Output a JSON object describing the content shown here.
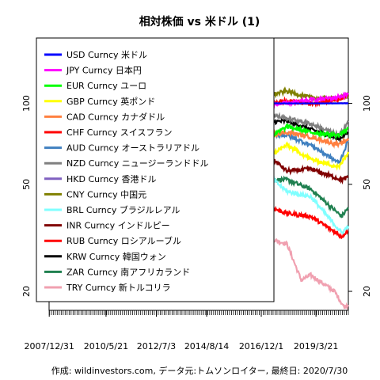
{
  "chart_data": {
    "type": "line",
    "title": "相対株価 vs 米ドル (1)",
    "footer": "作成: wildinvestors.com, データ元:トムソンロイター, 最終日: 2020/7/30",
    "x_tick_labels": [
      "2007/12/31",
      "2010/5/21",
      "2012/7/3",
      "2014/8/14",
      "2016/12/1",
      "2019/3/21"
    ],
    "y_tick_labels": [
      "20",
      "50",
      "100"
    ],
    "y_ticks": [
      20,
      50,
      100
    ],
    "log_scale_y": true,
    "ylim": [
      17,
      175
    ],
    "x_range": [
      2007.99,
      2020.58
    ],
    "x_tick_years": [
      2007.997,
      2010.386,
      2012.503,
      2014.619,
      2016.917,
      2019.219
    ],
    "grid": false,
    "legend_position": "top-left",
    "series": [
      {
        "name": "USD Curncy 米ドル",
        "color": "#0000ff",
        "points": [
          [
            2008,
            100
          ],
          [
            2020.58,
            100
          ]
        ]
      },
      {
        "name": "JPY Curncy 日本円",
        "color": "#ff00ff",
        "points": [
          [
            2008,
            100
          ],
          [
            2008.7,
            112
          ],
          [
            2009.2,
            135
          ],
          [
            2010,
            125
          ],
          [
            2010.8,
            140
          ],
          [
            2011.7,
            145
          ],
          [
            2012.5,
            142
          ],
          [
            2013.3,
            112
          ],
          [
            2014,
            105
          ],
          [
            2015,
            93
          ],
          [
            2016,
            102
          ],
          [
            2016.5,
            112
          ],
          [
            2017,
            98
          ],
          [
            2018,
            100
          ],
          [
            2019,
            103
          ],
          [
            2020,
            105
          ],
          [
            2020.58,
            108
          ]
        ]
      },
      {
        "name": "EUR Curncy ユーロ",
        "color": "#00ff00",
        "points": [
          [
            2008,
            100
          ],
          [
            2008.5,
            108
          ],
          [
            2009,
            90
          ],
          [
            2009.9,
            102
          ],
          [
            2010.5,
            83
          ],
          [
            2011.3,
            98
          ],
          [
            2012.5,
            85
          ],
          [
            2013.5,
            92
          ],
          [
            2014.3,
            95
          ],
          [
            2015,
            75
          ],
          [
            2016,
            76
          ],
          [
            2017,
            72
          ],
          [
            2018,
            82
          ],
          [
            2019,
            78
          ],
          [
            2020.2,
            76
          ],
          [
            2020.58,
            81
          ]
        ]
      },
      {
        "name": "GBP Curncy 英ポンド",
        "color": "#ffff00",
        "points": [
          [
            2008,
            100
          ],
          [
            2008.5,
            98
          ],
          [
            2009,
            72
          ],
          [
            2009.5,
            80
          ],
          [
            2010.5,
            75
          ],
          [
            2011.5,
            80
          ],
          [
            2012.5,
            78
          ],
          [
            2013.5,
            79
          ],
          [
            2014.5,
            85
          ],
          [
            2015.5,
            77
          ],
          [
            2016.5,
            65
          ],
          [
            2017,
            62
          ],
          [
            2018,
            70
          ],
          [
            2019,
            62
          ],
          [
            2020.2,
            58
          ],
          [
            2020.58,
            66
          ]
        ]
      },
      {
        "name": "CAD Curncy カナダドル",
        "color": "#ff8040",
        "points": [
          [
            2008,
            100
          ],
          [
            2008.5,
            98
          ],
          [
            2009,
            80
          ],
          [
            2010,
            97
          ],
          [
            2011.3,
            103
          ],
          [
            2012.5,
            99
          ],
          [
            2013.5,
            95
          ],
          [
            2014.5,
            91
          ],
          [
            2015.5,
            78
          ],
          [
            2016,
            72
          ],
          [
            2017,
            76
          ],
          [
            2018,
            78
          ],
          [
            2019,
            75
          ],
          [
            2020.2,
            70
          ],
          [
            2020.58,
            74
          ]
        ]
      },
      {
        "name": "CHF Curncy スイスフラン",
        "color": "#ff0000",
        "points": [
          [
            2008,
            100
          ],
          [
            2008.5,
            105
          ],
          [
            2009,
            95
          ],
          [
            2010,
            97
          ],
          [
            2011.6,
            130
          ],
          [
            2012.5,
            110
          ],
          [
            2013.5,
            112
          ],
          [
            2014.5,
            113
          ],
          [
            2015,
            118
          ],
          [
            2016,
            102
          ],
          [
            2017,
            100
          ],
          [
            2018,
            102
          ],
          [
            2019,
            100
          ],
          [
            2020,
            103
          ],
          [
            2020.58,
            107
          ]
        ]
      },
      {
        "name": "AUD Curncy オーストラリアドル",
        "color": "#4080c0",
        "points": [
          [
            2008,
            100
          ],
          [
            2008.5,
            104
          ],
          [
            2009,
            68
          ],
          [
            2010,
            92
          ],
          [
            2011.5,
            110
          ],
          [
            2012.5,
            105
          ],
          [
            2013.5,
            95
          ],
          [
            2014.5,
            93
          ],
          [
            2015.5,
            77
          ],
          [
            2016.5,
            75
          ],
          [
            2017,
            78
          ],
          [
            2018,
            76
          ],
          [
            2019,
            70
          ],
          [
            2020.2,
            60
          ],
          [
            2020.58,
            73
          ]
        ]
      },
      {
        "name": "NZD Curncy ニュージーランドドル",
        "color": "#808080",
        "points": [
          [
            2008,
            100
          ],
          [
            2008.5,
            97
          ],
          [
            2009,
            68
          ],
          [
            2010,
            88
          ],
          [
            2011.5,
            100
          ],
          [
            2012.5,
            98
          ],
          [
            2013.5,
            104
          ],
          [
            2014.5,
            105
          ],
          [
            2015.5,
            86
          ],
          [
            2016.5,
            90
          ],
          [
            2017,
            92
          ],
          [
            2018,
            88
          ],
          [
            2019,
            84
          ],
          [
            2020.2,
            76
          ],
          [
            2020.58,
            86
          ]
        ]
      },
      {
        "name": "HKD Curncy 香港ドル",
        "color": "#8060c0",
        "points": [
          [
            2008,
            100
          ],
          [
            2009,
            100.5
          ],
          [
            2011,
            100.3
          ],
          [
            2013,
            100.5
          ],
          [
            2015,
            100.6
          ],
          [
            2017,
            100.2
          ],
          [
            2019,
            99.6
          ],
          [
            2020.58,
            100.4
          ]
        ]
      },
      {
        "name": "CNY Curncy 中国元",
        "color": "#808000",
        "points": [
          [
            2008,
            100
          ],
          [
            2008.6,
            107
          ],
          [
            2010,
            107
          ],
          [
            2011,
            112
          ],
          [
            2012.5,
            115
          ],
          [
            2014,
            118
          ],
          [
            2015,
            117
          ],
          [
            2016,
            110
          ],
          [
            2017,
            106
          ],
          [
            2018,
            111
          ],
          [
            2019,
            105
          ],
          [
            2020,
            104
          ],
          [
            2020.58,
            106
          ]
        ]
      },
      {
        "name": "BRL Curncy ブラジルレアル",
        "color": "#80ffff",
        "points": [
          [
            2008,
            100
          ],
          [
            2008.5,
            108
          ],
          [
            2009,
            72
          ],
          [
            2010,
            97
          ],
          [
            2011.5,
            108
          ],
          [
            2012.5,
            85
          ],
          [
            2013.5,
            78
          ],
          [
            2014.5,
            76
          ],
          [
            2015.5,
            50
          ],
          [
            2016.5,
            55
          ],
          [
            2017,
            56
          ],
          [
            2018,
            47
          ],
          [
            2019,
            45
          ],
          [
            2020.3,
            33
          ],
          [
            2020.58,
            35
          ]
        ]
      },
      {
        "name": "INR Curncy インドルピー",
        "color": "#800000",
        "points": [
          [
            2008,
            100
          ],
          [
            2009,
            80
          ],
          [
            2010,
            85
          ],
          [
            2011.5,
            88
          ],
          [
            2012.5,
            72
          ],
          [
            2013.6,
            62
          ],
          [
            2014.5,
            66
          ],
          [
            2015.5,
            60
          ],
          [
            2016.5,
            58
          ],
          [
            2017.5,
            61
          ],
          [
            2018,
            56
          ],
          [
            2019,
            57
          ],
          [
            2020.3,
            52
          ],
          [
            2020.58,
            53
          ]
        ]
      },
      {
        "name": "RUB Curncy ロシアルーブル",
        "color": "#ff0000",
        "points": [
          [
            2008,
            100
          ],
          [
            2008.5,
            104
          ],
          [
            2009,
            72
          ],
          [
            2010,
            82
          ],
          [
            2011.5,
            85
          ],
          [
            2012.5,
            76
          ],
          [
            2013.5,
            74
          ],
          [
            2014.5,
            68
          ],
          [
            2015,
            40
          ],
          [
            2015.2,
            48
          ],
          [
            2016,
            34
          ],
          [
            2016.5,
            38
          ],
          [
            2017,
            42
          ],
          [
            2018,
            39
          ],
          [
            2019,
            38
          ],
          [
            2020.3,
            32
          ],
          [
            2020.58,
            34
          ]
        ]
      },
      {
        "name": "KRW Curncy 韓国ウォン",
        "color": "#000000",
        "points": [
          [
            2008,
            100
          ],
          [
            2008.5,
            92
          ],
          [
            2009.1,
            65
          ],
          [
            2010,
            80
          ],
          [
            2011.5,
            88
          ],
          [
            2012.5,
            87
          ],
          [
            2013.5,
            90
          ],
          [
            2014.5,
            92
          ],
          [
            2015.5,
            80
          ],
          [
            2016.5,
            82
          ],
          [
            2017,
            85
          ],
          [
            2018,
            86
          ],
          [
            2019,
            80
          ],
          [
            2020.2,
            74
          ],
          [
            2020.58,
            78
          ]
        ]
      },
      {
        "name": "ZAR Curncy 南アフリカランド",
        "color": "#208050",
        "points": [
          [
            2008,
            100
          ],
          [
            2008.5,
            98
          ],
          [
            2009,
            65
          ],
          [
            2010,
            92
          ],
          [
            2011.3,
            96
          ],
          [
            2012.5,
            84
          ],
          [
            2013.5,
            70
          ],
          [
            2014.5,
            64
          ],
          [
            2015.5,
            50
          ],
          [
            2016,
            44
          ],
          [
            2016.5,
            50
          ],
          [
            2017,
            52
          ],
          [
            2018,
            52
          ],
          [
            2019,
            48
          ],
          [
            2020.3,
            38
          ],
          [
            2020.58,
            41
          ]
        ]
      },
      {
        "name": "TRY Curncy 新トルコリラ",
        "color": "#f0a0b0",
        "points": [
          [
            2008,
            100
          ],
          [
            2008.5,
            95
          ],
          [
            2009,
            70
          ],
          [
            2010,
            78
          ],
          [
            2011.5,
            72
          ],
          [
            2012.5,
            68
          ],
          [
            2013.5,
            58
          ],
          [
            2014.5,
            53
          ],
          [
            2015.5,
            42
          ],
          [
            2016.5,
            37
          ],
          [
            2017,
            32
          ],
          [
            2018,
            30
          ],
          [
            2018.6,
            22
          ],
          [
            2019,
            23
          ],
          [
            2020,
            20
          ],
          [
            2020.4,
            17.5
          ],
          [
            2020.58,
            17.8
          ]
        ]
      }
    ]
  }
}
